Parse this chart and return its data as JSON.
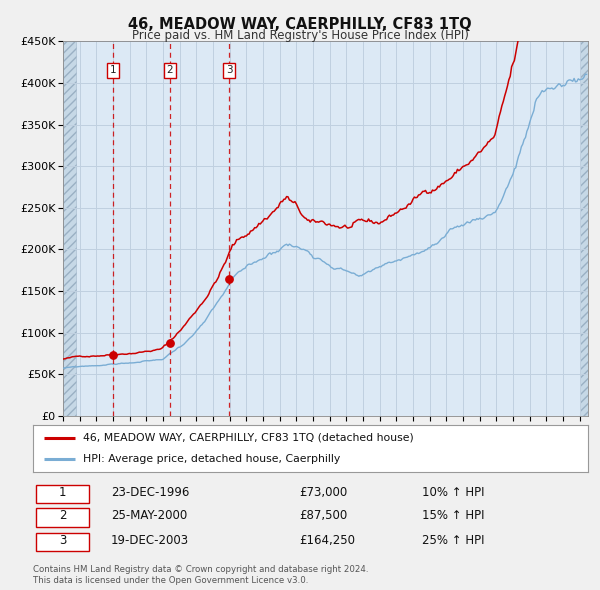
{
  "title": "46, MEADOW WAY, CAERPHILLY, CF83 1TQ",
  "subtitle": "Price paid vs. HM Land Registry's House Price Index (HPI)",
  "sale_dates_decimal": [
    1996.98,
    2000.4,
    2003.97
  ],
  "sale_prices": [
    73000,
    87500,
    164250
  ],
  "legend_line1": "46, MEADOW WAY, CAERPHILLY, CF83 1TQ (detached house)",
  "legend_line2": "HPI: Average price, detached house, Caerphilly",
  "table_rows": [
    [
      "1",
      "23-DEC-1996",
      "£73,000",
      "10% ↑ HPI"
    ],
    [
      "2",
      "25-MAY-2000",
      "£87,500",
      "15% ↑ HPI"
    ],
    [
      "3",
      "19-DEC-2003",
      "£164,250",
      "25% ↑ HPI"
    ]
  ],
  "footer1": "Contains HM Land Registry data © Crown copyright and database right 2024.",
  "footer2": "This data is licensed under the Open Government Licence v3.0.",
  "property_color": "#cc0000",
  "hpi_color": "#7aadd4",
  "vline_color": "#cc0000",
  "sale_dot_color": "#cc0000",
  "bg_color": "#dce9f5",
  "hatch_color": "#b8cedd",
  "grid_color": "#c8d8e8",
  "fig_bg": "#f0f0f0",
  "ylim": [
    0,
    450000
  ],
  "xlim_start": 1994.0,
  "xlim_end": 2025.5,
  "property_seed": 42,
  "hpi_seed": 99
}
